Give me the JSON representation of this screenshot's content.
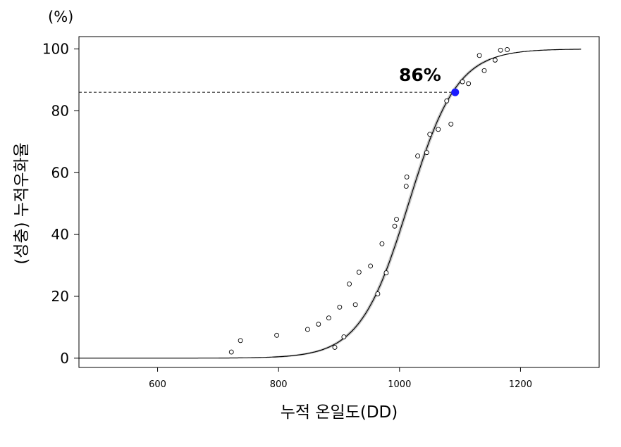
{
  "chart_data": {
    "type": "scatter",
    "title": "",
    "y_unit": "(%)",
    "xlabel": "누적 온일도(DD)",
    "ylabel": "(성충) 누적우화율",
    "xlim": [
      470,
      1330
    ],
    "ylim": [
      -3,
      104
    ],
    "x_ticks": [
      "600",
      "800",
      "1000",
      "1200"
    ],
    "y_ticks": [
      "0",
      "20",
      "40",
      "60",
      "80",
      "100"
    ],
    "grid": false,
    "legend": "none",
    "fitted_curve": {
      "model": "logistic",
      "midpoint": 1015,
      "scale": 40,
      "x_range": [
        470,
        1300
      ],
      "band_width": 1.6,
      "band_x_range": [
        790,
        1150
      ],
      "line_color": "#000000",
      "band_color": "#c8c8c8"
    },
    "observed": [
      {
        "x": 722,
        "y": 2
      },
      {
        "x": 737,
        "y": 5.7
      },
      {
        "x": 797,
        "y": 7.4
      },
      {
        "x": 848,
        "y": 9.3
      },
      {
        "x": 866,
        "y": 11
      },
      {
        "x": 883,
        "y": 13
      },
      {
        "x": 893,
        "y": 3.5
      },
      {
        "x": 901,
        "y": 16.5
      },
      {
        "x": 908,
        "y": 6.9
      },
      {
        "x": 917,
        "y": 24
      },
      {
        "x": 927,
        "y": 17.3
      },
      {
        "x": 933,
        "y": 27.8
      },
      {
        "x": 952,
        "y": 29.8
      },
      {
        "x": 964,
        "y": 20.8
      },
      {
        "x": 971,
        "y": 37
      },
      {
        "x": 978,
        "y": 27.6
      },
      {
        "x": 992,
        "y": 42.7
      },
      {
        "x": 995,
        "y": 44.9
      },
      {
        "x": 1011,
        "y": 55.6
      },
      {
        "x": 1012,
        "y": 58.6
      },
      {
        "x": 1030,
        "y": 65.4
      },
      {
        "x": 1045,
        "y": 66.5
      },
      {
        "x": 1050,
        "y": 72.4
      },
      {
        "x": 1064,
        "y": 74
      },
      {
        "x": 1078,
        "y": 83.2
      },
      {
        "x": 1085,
        "y": 75.7
      },
      {
        "x": 1104,
        "y": 89.4
      },
      {
        "x": 1114,
        "y": 88.8
      },
      {
        "x": 1132,
        "y": 97.9
      },
      {
        "x": 1140,
        "y": 93
      },
      {
        "x": 1158,
        "y": 96.4
      },
      {
        "x": 1167,
        "y": 99.6
      },
      {
        "x": 1178,
        "y": 99.8
      }
    ],
    "highlight": {
      "x": 1092,
      "y": 86,
      "label": "86%",
      "color": "#1a1aff",
      "reference_line": "dashed-horizontal"
    }
  }
}
